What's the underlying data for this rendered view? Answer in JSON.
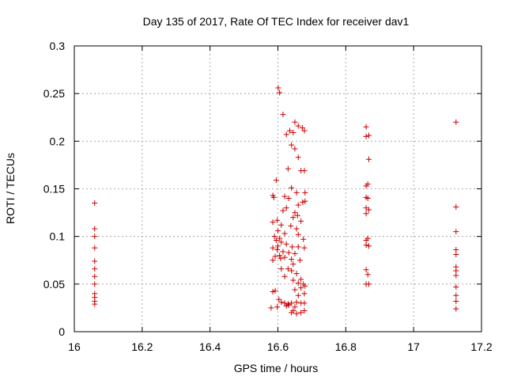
{
  "chart_data": {
    "type": "scatter",
    "title": "Day 135 of 2017, Rate Of TEC Index for receiver dav1",
    "xlabel": "GPS time / hours",
    "ylabel": "ROTI / TECUs",
    "xlim": [
      16,
      17.2
    ],
    "ylim": [
      0,
      0.3
    ],
    "xticks": [
      16,
      16.2,
      16.4,
      16.6,
      16.8,
      17,
      17.2
    ],
    "xtick_labels": [
      "16",
      "16.2",
      "16.4",
      "16.6",
      "16.8",
      "17",
      "17.2"
    ],
    "yticks": [
      0,
      0.05,
      0.1,
      0.15,
      0.2,
      0.25,
      0.3
    ],
    "ytick_labels": [
      "0",
      "0.05",
      "0.1",
      "0.15",
      "0.2",
      "0.25",
      "0.3"
    ],
    "grid": true,
    "marker": "+",
    "color": "#cc0000",
    "points": [
      [
        16.06,
        0.135
      ],
      [
        16.06,
        0.108
      ],
      [
        16.06,
        0.1
      ],
      [
        16.06,
        0.088
      ],
      [
        16.06,
        0.074
      ],
      [
        16.06,
        0.066
      ],
      [
        16.06,
        0.058
      ],
      [
        16.06,
        0.05
      ],
      [
        16.06,
        0.04
      ],
      [
        16.06,
        0.036
      ],
      [
        16.06,
        0.032
      ],
      [
        16.06,
        0.029
      ],
      [
        16.601,
        0.256
      ],
      [
        16.605,
        0.251
      ],
      [
        16.615,
        0.228
      ],
      [
        16.65,
        0.22
      ],
      [
        16.645,
        0.209
      ],
      [
        16.66,
        0.216
      ],
      [
        16.672,
        0.214
      ],
      [
        16.678,
        0.211
      ],
      [
        16.625,
        0.207
      ],
      [
        16.635,
        0.211
      ],
      [
        16.64,
        0.196
      ],
      [
        16.65,
        0.192
      ],
      [
        16.66,
        0.183
      ],
      [
        16.63,
        0.171
      ],
      [
        16.668,
        0.169
      ],
      [
        16.678,
        0.169
      ],
      [
        16.595,
        0.159
      ],
      [
        16.64,
        0.151
      ],
      [
        16.655,
        0.146
      ],
      [
        16.68,
        0.146
      ],
      [
        16.585,
        0.143
      ],
      [
        16.588,
        0.141
      ],
      [
        16.62,
        0.142
      ],
      [
        16.632,
        0.14
      ],
      [
        16.68,
        0.137
      ],
      [
        16.673,
        0.136
      ],
      [
        16.66,
        0.133
      ],
      [
        16.625,
        0.13
      ],
      [
        16.615,
        0.127
      ],
      [
        16.65,
        0.125
      ],
      [
        16.645,
        0.12
      ],
      [
        16.658,
        0.122
      ],
      [
        16.668,
        0.116
      ],
      [
        16.598,
        0.117
      ],
      [
        16.585,
        0.115
      ],
      [
        16.61,
        0.112
      ],
      [
        16.638,
        0.111
      ],
      [
        16.655,
        0.108
      ],
      [
        16.6,
        0.106
      ],
      [
        16.62,
        0.103
      ],
      [
        16.66,
        0.102
      ],
      [
        16.59,
        0.1
      ],
      [
        16.605,
        0.098
      ],
      [
        16.595,
        0.096
      ],
      [
        16.675,
        0.097
      ],
      [
        16.61,
        0.094
      ],
      [
        16.625,
        0.092
      ],
      [
        16.6,
        0.09
      ],
      [
        16.642,
        0.089
      ],
      [
        16.66,
        0.089
      ],
      [
        16.678,
        0.088
      ],
      [
        16.585,
        0.088
      ],
      [
        16.598,
        0.086
      ],
      [
        16.615,
        0.084
      ],
      [
        16.632,
        0.083
      ],
      [
        16.65,
        0.082
      ],
      [
        16.605,
        0.08
      ],
      [
        16.592,
        0.079
      ],
      [
        16.62,
        0.078
      ],
      [
        16.608,
        0.077
      ],
      [
        16.64,
        0.076
      ],
      [
        16.585,
        0.075
      ],
      [
        16.665,
        0.075
      ],
      [
        16.645,
        0.071
      ],
      [
        16.61,
        0.066
      ],
      [
        16.63,
        0.066
      ],
      [
        16.64,
        0.064
      ],
      [
        16.655,
        0.061
      ],
      [
        16.62,
        0.058
      ],
      [
        16.668,
        0.055
      ],
      [
        16.645,
        0.054
      ],
      [
        16.66,
        0.051
      ],
      [
        16.675,
        0.05
      ],
      [
        16.68,
        0.048
      ],
      [
        16.668,
        0.046
      ],
      [
        16.65,
        0.044
      ],
      [
        16.592,
        0.043
      ],
      [
        16.585,
        0.042
      ],
      [
        16.678,
        0.04
      ],
      [
        16.66,
        0.038
      ],
      [
        16.603,
        0.034
      ],
      [
        16.61,
        0.031
      ],
      [
        16.62,
        0.03
      ],
      [
        16.63,
        0.029
      ],
      [
        16.64,
        0.03
      ],
      [
        16.655,
        0.031
      ],
      [
        16.668,
        0.03
      ],
      [
        16.678,
        0.03
      ],
      [
        16.625,
        0.027
      ],
      [
        16.58,
        0.025
      ],
      [
        16.598,
        0.026
      ],
      [
        16.645,
        0.022
      ],
      [
        16.668,
        0.02
      ],
      [
        16.678,
        0.022
      ],
      [
        16.64,
        0.02
      ],
      [
        16.655,
        0.019
      ],
      [
        16.632,
        0.028
      ],
      [
        16.65,
        0.026
      ],
      [
        16.86,
        0.215
      ],
      [
        16.86,
        0.205
      ],
      [
        16.868,
        0.206
      ],
      [
        16.868,
        0.181
      ],
      [
        16.865,
        0.155
      ],
      [
        16.86,
        0.153
      ],
      [
        16.86,
        0.141
      ],
      [
        16.865,
        0.14
      ],
      [
        16.86,
        0.13
      ],
      [
        16.868,
        0.128
      ],
      [
        16.86,
        0.124
      ],
      [
        16.865,
        0.098
      ],
      [
        16.86,
        0.096
      ],
      [
        16.86,
        0.091
      ],
      [
        16.868,
        0.09
      ],
      [
        16.86,
        0.065
      ],
      [
        16.865,
        0.06
      ],
      [
        16.86,
        0.05
      ],
      [
        16.868,
        0.05
      ],
      [
        17.125,
        0.22
      ],
      [
        17.125,
        0.131
      ],
      [
        17.125,
        0.105
      ],
      [
        17.125,
        0.086
      ],
      [
        17.125,
        0.081
      ],
      [
        17.125,
        0.068
      ],
      [
        17.125,
        0.064
      ],
      [
        17.125,
        0.059
      ],
      [
        17.125,
        0.047
      ],
      [
        17.125,
        0.038
      ],
      [
        17.125,
        0.032
      ],
      [
        17.125,
        0.024
      ]
    ]
  }
}
